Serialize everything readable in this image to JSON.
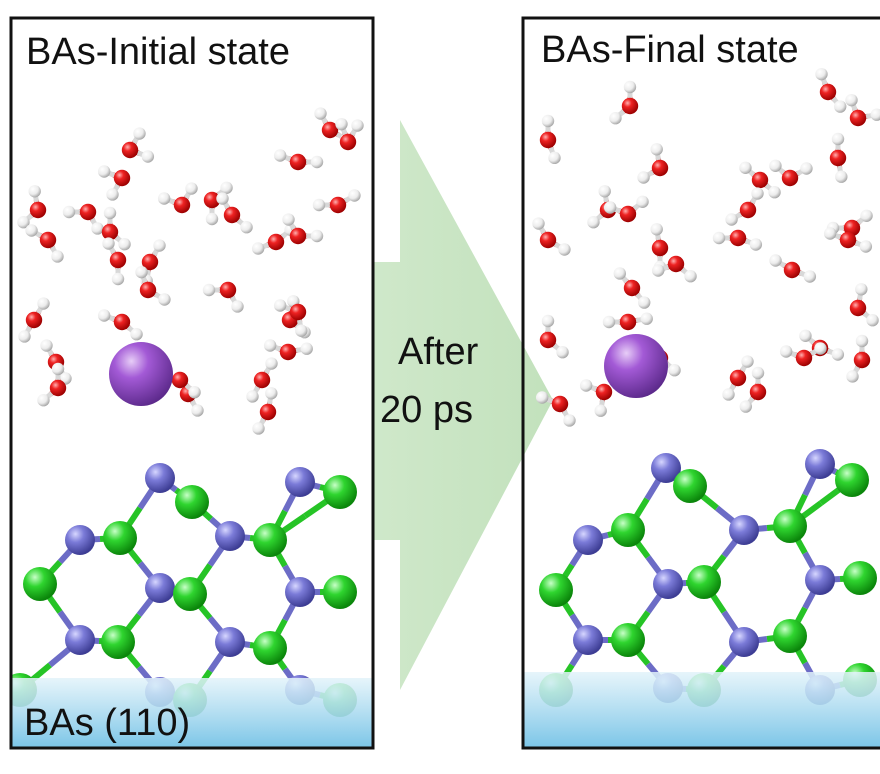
{
  "panels": [
    {
      "title": "BAs-Initial state",
      "base_label": "BAs (110)"
    },
    {
      "title": "BAs-Final state"
    }
  ],
  "arrow": {
    "line1": "After",
    "line2": "20 ps"
  },
  "colors": {
    "oxygen": "#e8141a",
    "hydrogen": "#f2f2f2",
    "cation": "#9a55cf",
    "boron": "#7a7ad6",
    "arsenic": "#2ad12a",
    "arrow_fill": "#c9e6c4",
    "substrate": "#8ccde8"
  }
}
